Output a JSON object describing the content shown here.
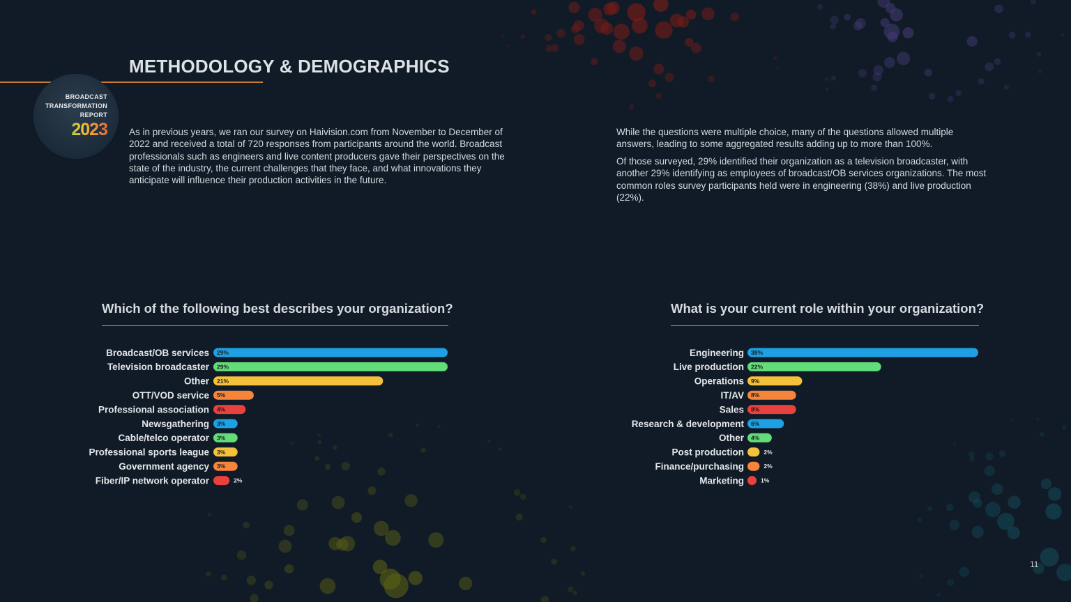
{
  "page": {
    "title": "METHODOLOGY & DEMOGRAPHICS",
    "page_number": "11",
    "badge": {
      "line1": "BROADCAST",
      "line2": "TRANSFORMATION",
      "line3": "REPORT",
      "year": "2023"
    },
    "intro_left": "As in previous years, we ran our survey on Haivision.com from November to December of 2022 and received a total of 720 responses from participants around the world. Broadcast professionals such as engineers and live content producers gave their perspectives on the state of the industry, the current challenges that they face, and what innovations they anticipate will influence their production activities in the future.",
    "intro_right_1": "While the questions were multiple choice, many of the questions allowed multiple answers, leading to some aggregated results adding up to more than 100%.",
    "intro_right_2": "Of those surveyed, 29% identified their organization as a television broadcaster, with another 29% identifying as employees of broadcast/OB services organizations. The most common roles survey participants held were in engineering (38%) and live production (22%)."
  },
  "colors": {
    "blue": "#1ea1e4",
    "green": "#63dd7a",
    "yellow": "#f4c13a",
    "orange": "#f4853a",
    "red": "#e8413e",
    "accent_rule": "#c97a35"
  },
  "chart_data": [
    {
      "type": "bar",
      "orientation": "horizontal",
      "title": "Which of the following best describes your organization?",
      "unit": "%",
      "categories": [
        "Broadcast/OB services",
        "Television broadcaster",
        "Other",
        "OTT/VOD service",
        "Professional association",
        "Newsgathering",
        "Cable/telco operator",
        "Professional sports league",
        "Government agency",
        "Fiber/IP network operator"
      ],
      "values": [
        29,
        29,
        21,
        5,
        4,
        3,
        3,
        3,
        3,
        2
      ],
      "bar_colors": [
        "blue",
        "green",
        "yellow",
        "orange",
        "red",
        "blue",
        "green",
        "yellow",
        "orange",
        "red"
      ],
      "xlim": [
        0,
        29
      ]
    },
    {
      "type": "bar",
      "orientation": "horizontal",
      "title": "What is your current role within your organization?",
      "unit": "%",
      "categories": [
        "Engineering",
        "Live production",
        "Operations",
        "IT/AV",
        "Sales",
        "Research & development",
        "Other",
        "Post production",
        "Finance/purchasing",
        "Marketing"
      ],
      "values": [
        38,
        22,
        9,
        8,
        8,
        6,
        4,
        2,
        2,
        1
      ],
      "bar_colors": [
        "blue",
        "green",
        "yellow",
        "orange",
        "red",
        "blue",
        "green",
        "yellow",
        "orange",
        "red"
      ],
      "xlim": [
        0,
        38
      ]
    }
  ]
}
